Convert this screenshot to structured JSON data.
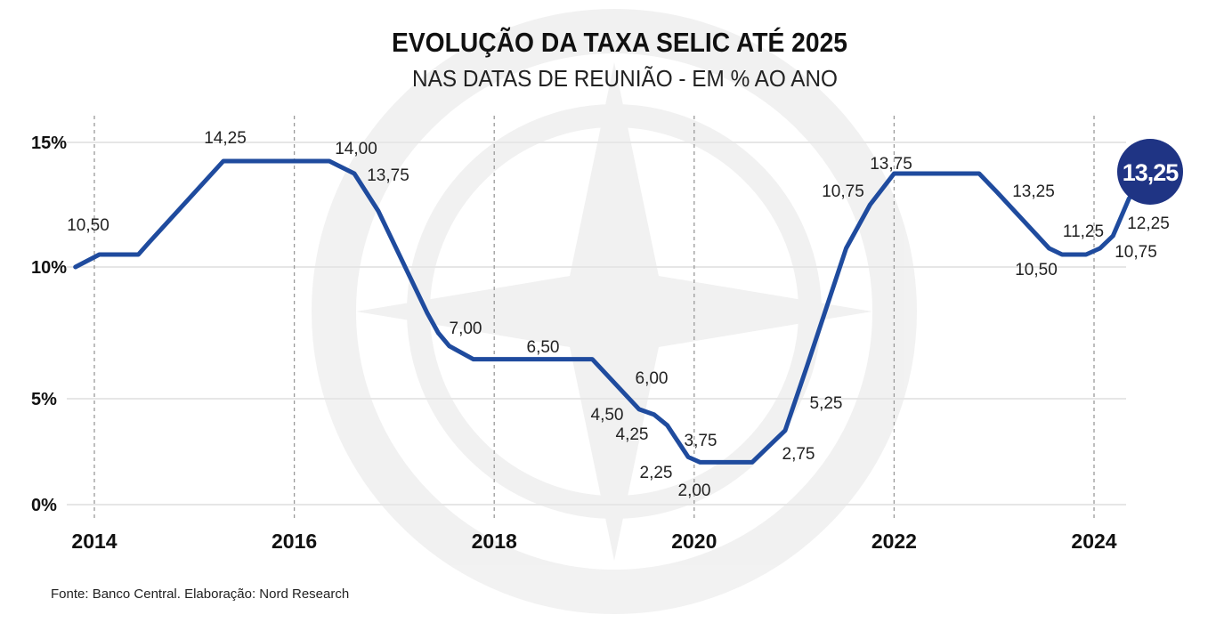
{
  "chart_data": {
    "type": "line",
    "title": "EVOLUÇÃO DA TAXA SELIC ATÉ 2025",
    "subtitle": "NAS DATAS DE REUNIÃO - EM % AO ANO",
    "source": "Fonte: Banco Central. Elaboração: Nord Research",
    "xlabel": "",
    "ylabel": "",
    "x_ticks": [
      "2014",
      "2016",
      "2018",
      "2020",
      "2022",
      "2024"
    ],
    "y_ticks": [
      {
        "value": 0,
        "label": "0%"
      },
      {
        "value": 5,
        "label": "5%"
      },
      {
        "value": 10,
        "label": "10%"
      },
      {
        "value": 15,
        "label": "15%"
      }
    ],
    "xlim": [
      2013.8,
      2024.5
    ],
    "ylim": [
      0,
      15
    ],
    "grid": "horizontal solid, vertical dashed at year ticks",
    "line_color": "#1f4b9e",
    "highlight_color": "#1f3484",
    "series": [
      {
        "points": [
          [
            2013.81,
            10.0
          ],
          [
            2014.05,
            10.5
          ],
          [
            2014.44,
            10.5
          ],
          [
            2014.55,
            11.0
          ],
          [
            2015.29,
            14.25
          ],
          [
            2016.35,
            14.25
          ],
          [
            2016.6,
            13.75
          ],
          [
            2016.84,
            12.25
          ],
          [
            2017.33,
            8.25
          ],
          [
            2017.44,
            7.5
          ],
          [
            2017.55,
            7.0
          ],
          [
            2017.79,
            6.5
          ],
          [
            2018.98,
            6.5
          ],
          [
            2019.45,
            4.5
          ],
          [
            2019.6,
            4.25
          ],
          [
            2019.73,
            3.75
          ],
          [
            2019.94,
            2.25
          ],
          [
            2020.06,
            2.0
          ],
          [
            2020.58,
            2.0
          ],
          [
            2020.91,
            3.5
          ],
          [
            2021.13,
            6.25
          ],
          [
            2021.52,
            10.75
          ],
          [
            2021.76,
            12.5
          ],
          [
            2022.0,
            13.75
          ],
          [
            2022.85,
            13.75
          ],
          [
            2023.03,
            13.0
          ],
          [
            2023.55,
            10.75
          ],
          [
            2023.68,
            10.5
          ],
          [
            2023.92,
            10.5
          ],
          [
            2024.06,
            10.75
          ],
          [
            2024.19,
            11.25
          ],
          [
            2024.35,
            12.75
          ],
          [
            2024.46,
            13.25
          ]
        ]
      }
    ],
    "annotations": [
      "10,50",
      "14,25",
      "14,00",
      "13,75",
      "7,00",
      "6,50",
      "6,00",
      "4,50",
      "4,25",
      "3,75",
      "2,25",
      "2,00",
      "2,75",
      "5,25",
      "10,75",
      "13,75",
      "13,25",
      "11,25",
      "10,50",
      "12,25",
      "10,75"
    ],
    "highlight_label": "13,25"
  }
}
